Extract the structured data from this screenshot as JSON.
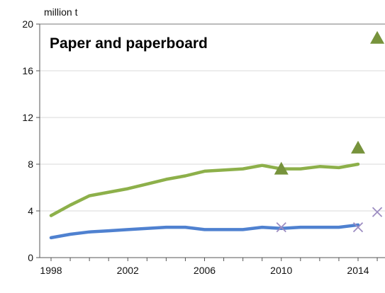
{
  "chart_data": {
    "type": "line",
    "title": "Paper and paperboard",
    "ylabel": "million t",
    "xlabel": "",
    "xlim": [
      1998,
      2015
    ],
    "ylim": [
      0,
      20
    ],
    "y_ticks": [
      0,
      4,
      8,
      12,
      16,
      20
    ],
    "x_ticks": [
      1998,
      2002,
      2006,
      2010,
      2014
    ],
    "grid": "horizontal",
    "series": [
      {
        "color": "#8db04a",
        "x": [
          1998,
          1999,
          2000,
          2001,
          2002,
          2003,
          2004,
          2005,
          2006,
          2007,
          2008,
          2009,
          2010,
          2011,
          2012,
          2013,
          2014
        ],
        "values": [
          3.6,
          4.5,
          5.3,
          5.6,
          5.9,
          6.3,
          6.7,
          7.0,
          7.4,
          7.5,
          7.6,
          7.9,
          7.6,
          7.6,
          7.8,
          7.7,
          8.0
        ]
      },
      {
        "color": "#4f81d0",
        "x": [
          1998,
          1999,
          2000,
          2001,
          2002,
          2003,
          2004,
          2005,
          2006,
          2007,
          2008,
          2009,
          2010,
          2011,
          2012,
          2013,
          2014
        ],
        "values": [
          1.7,
          2.0,
          2.2,
          2.3,
          2.4,
          2.5,
          2.6,
          2.6,
          2.4,
          2.4,
          2.4,
          2.6,
          2.5,
          2.6,
          2.6,
          2.6,
          2.8
        ]
      }
    ],
    "markers": [
      {
        "shape": "triangle",
        "color": "#77933c",
        "points": [
          [
            2010,
            7.6
          ],
          [
            2014,
            9.4
          ],
          [
            2015,
            18.8
          ]
        ]
      },
      {
        "shape": "cross",
        "color": "#9d8dc2",
        "points": [
          [
            2010,
            2.6
          ],
          [
            2014,
            2.6
          ],
          [
            2015,
            3.9
          ]
        ]
      }
    ]
  }
}
